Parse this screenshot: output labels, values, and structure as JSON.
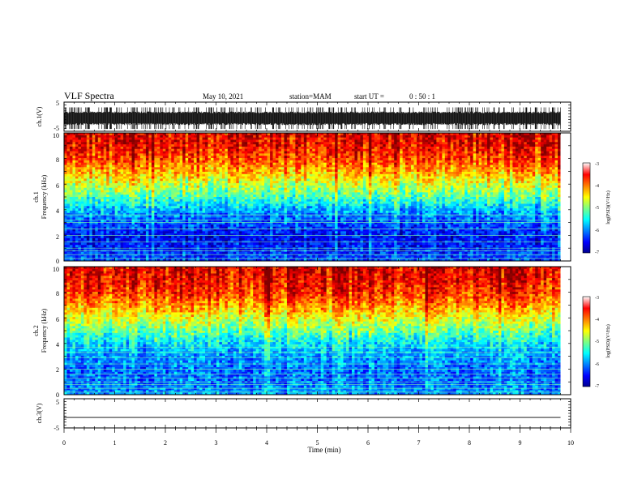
{
  "header": {
    "title": "VLF Spectra",
    "date": "May 10, 2021",
    "station": "station=MAM",
    "start_label": "start  UT  =",
    "start_time": "0 : 50 : 1"
  },
  "x_axis": {
    "label": "Time  (min)",
    "range": [
      0,
      10
    ],
    "ticks": [
      "0",
      "1",
      "2",
      "3",
      "4",
      "5",
      "6",
      "7",
      "8",
      "9",
      "10"
    ],
    "data_end": 9.8
  },
  "panels": {
    "ch1_waveform": {
      "ylabel": "ch.1(V)",
      "ticks": [
        "5",
        "-5"
      ],
      "ylim": [
        -5,
        5
      ]
    },
    "ch1_spectrogram": {
      "ylabel_top": "ch.1",
      "ylabel": "Frequency  (kHz)",
      "ticks": [
        "0",
        "2",
        "4",
        "6",
        "8",
        "10"
      ],
      "colorbar": {
        "label": "log(PSD)(V²/Hz)",
        "ticks": [
          "-3",
          "-4",
          "-5",
          "-6",
          "-7"
        ],
        "range": [
          -7,
          -3
        ]
      }
    },
    "ch2_spectrogram": {
      "ylabel_top": "ch.2",
      "ylabel": "Frequency  (kHz)",
      "ticks": [
        "0",
        "2",
        "4",
        "6",
        "8",
        "10"
      ],
      "colorbar": {
        "label": "log(PSD)(V²/Hz)",
        "ticks": [
          "-3",
          "-4",
          "-5",
          "-6",
          "-7"
        ],
        "range": [
          -7,
          -3
        ]
      }
    },
    "ch3_waveform": {
      "ylabel": "ch.3(V)",
      "ticks": [
        "5",
        "-5"
      ],
      "ylim": [
        -5,
        5
      ]
    }
  },
  "chart_data": [
    {
      "type": "line",
      "name": "ch1-waveform",
      "xlabel": "Time  (min)",
      "ylabel": "ch.1(V)",
      "xlim": [
        0,
        10
      ],
      "ylim": [
        -5,
        5
      ],
      "x": [
        0,
        9.8
      ],
      "y_band": [
        -4.2,
        3.2
      ]
    },
    {
      "type": "heatmap",
      "name": "ch1-spectrogram",
      "xlabel": "Time  (min)",
      "ylabel": "Frequency  (kHz)",
      "xlim": [
        0,
        9.8
      ],
      "ylim": [
        0,
        10
      ],
      "colorscale": "jet",
      "color_range": [
        -7,
        -3
      ],
      "freq_kHz": [
        0,
        1,
        2,
        3,
        4,
        5,
        6,
        7,
        8,
        9,
        10
      ],
      "log_psd_typical": [
        -6.2,
        -6.4,
        -6.5,
        -6.2,
        -5.8,
        -5.2,
        -4.7,
        -4.2,
        -3.8,
        -3.5,
        -3.4
      ],
      "tone_lines_kHz": [
        0.2,
        0.5,
        0.8,
        1.0,
        1.5,
        2.0,
        2.5,
        3.0,
        3.2,
        3.6
      ]
    },
    {
      "type": "heatmap",
      "name": "ch2-spectrogram",
      "xlabel": "Time  (min)",
      "ylabel": "Frequency  (kHz)",
      "xlim": [
        0,
        9.8
      ],
      "ylim": [
        0,
        10
      ],
      "colorscale": "jet",
      "color_range": [
        -7,
        -3
      ],
      "freq_kHz": [
        0,
        1,
        2,
        3,
        4,
        5,
        6,
        7,
        8,
        9,
        10
      ],
      "log_psd_typical": [
        -5.9,
        -6.1,
        -6.1,
        -5.9,
        -5.6,
        -5.1,
        -4.6,
        -4.1,
        -3.7,
        -3.5,
        -3.4
      ],
      "tone_lines_kHz": [
        0.2,
        0.5,
        0.8,
        1.0,
        1.3,
        1.6,
        2.0,
        2.4,
        2.9,
        3.3,
        3.7
      ]
    },
    {
      "type": "line",
      "name": "ch3-waveform",
      "xlabel": "Time  (min)",
      "ylabel": "ch.3(V)",
      "xlim": [
        0,
        10
      ],
      "ylim": [
        -5,
        5
      ],
      "x": [
        0,
        9.8
      ],
      "y": [
        -1.4,
        -1.4
      ]
    }
  ]
}
